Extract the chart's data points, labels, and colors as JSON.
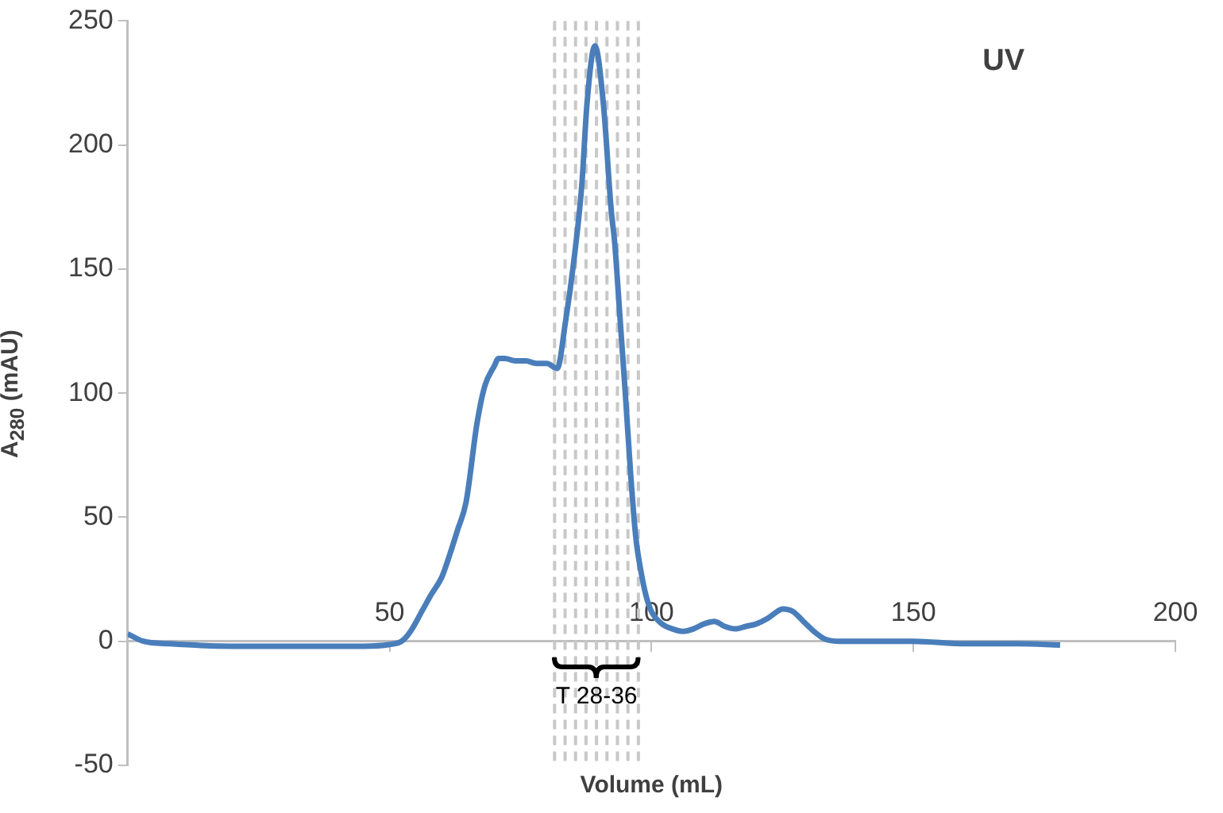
{
  "chart_data": {
    "type": "line",
    "xlabel": "Volume (mL)",
    "ylabel": "A$_{280}$ (mAU)",
    "annotations": [
      "UV",
      "T 28-36"
    ],
    "series": [
      {
        "color": "#4a7ebb",
        "x": [
          0,
          3,
          8,
          20,
          35,
          45,
          50,
          52.3,
          54,
          56.4,
          58,
          60,
          61.5,
          63,
          64.6,
          66.7,
          68.2,
          70,
          70.8,
          72,
          74,
          76,
          78,
          80,
          82,
          83.6,
          85.1,
          86.7,
          87.7,
          89.2,
          90.8,
          92.3,
          93,
          94,
          95,
          96,
          97,
          98,
          99,
          100,
          102,
          104,
          106,
          108,
          110,
          112,
          114,
          116,
          118,
          120,
          122,
          124,
          125,
          127,
          129,
          131,
          133,
          136,
          140,
          150,
          160,
          170,
          178
        ],
        "values": [
          3,
          0,
          -1,
          -2,
          -2,
          -2,
          -1.3,
          0,
          4,
          13,
          19,
          26,
          35,
          45,
          56,
          88,
          103,
          111,
          114,
          114,
          113,
          113,
          112,
          112,
          110,
          129,
          152,
          184,
          217,
          240,
          217,
          174,
          160,
          130,
          100,
          68,
          42,
          28,
          18,
          12,
          7,
          5,
          4,
          5,
          7,
          8,
          6,
          5,
          6,
          7,
          9,
          12,
          13,
          12,
          8,
          4,
          1,
          0,
          0,
          0,
          -1,
          -1,
          -1.5
        ]
      }
    ],
    "xlim": [
      0,
      200
    ],
    "xticks": [
      50,
      100,
      150,
      200
    ],
    "ylim": [
      -50,
      250
    ],
    "yticks": [
      -50,
      0,
      50,
      100,
      150,
      200,
      250
    ],
    "grid": false,
    "legend": false,
    "marker": "none",
    "line_style": "solid",
    "ref_lines": [
      {
        "axis": "x",
        "value": 81.5,
        "color": "#c8c8c8",
        "line_style": "dashed"
      },
      {
        "axis": "x",
        "value": 83.5,
        "color": "#c8c8c8",
        "line_style": "dashed"
      },
      {
        "axis": "x",
        "value": 85.5,
        "color": "#c8c8c8",
        "line_style": "dashed"
      },
      {
        "axis": "x",
        "value": 87.5,
        "color": "#c8c8c8",
        "line_style": "dashed"
      },
      {
        "axis": "x",
        "value": 89.5,
        "color": "#c8c8c8",
        "line_style": "dashed"
      },
      {
        "axis": "x",
        "value": 91.5,
        "color": "#c8c8c8",
        "line_style": "dashed"
      },
      {
        "axis": "x",
        "value": 93.5,
        "color": "#c8c8c8",
        "line_style": "dashed"
      },
      {
        "axis": "x",
        "value": 95.5,
        "color": "#c8c8c8",
        "line_style": "dashed"
      },
      {
        "axis": "x",
        "value": 97.5,
        "color": "#c8c8c8",
        "line_style": "dashed"
      }
    ]
  }
}
